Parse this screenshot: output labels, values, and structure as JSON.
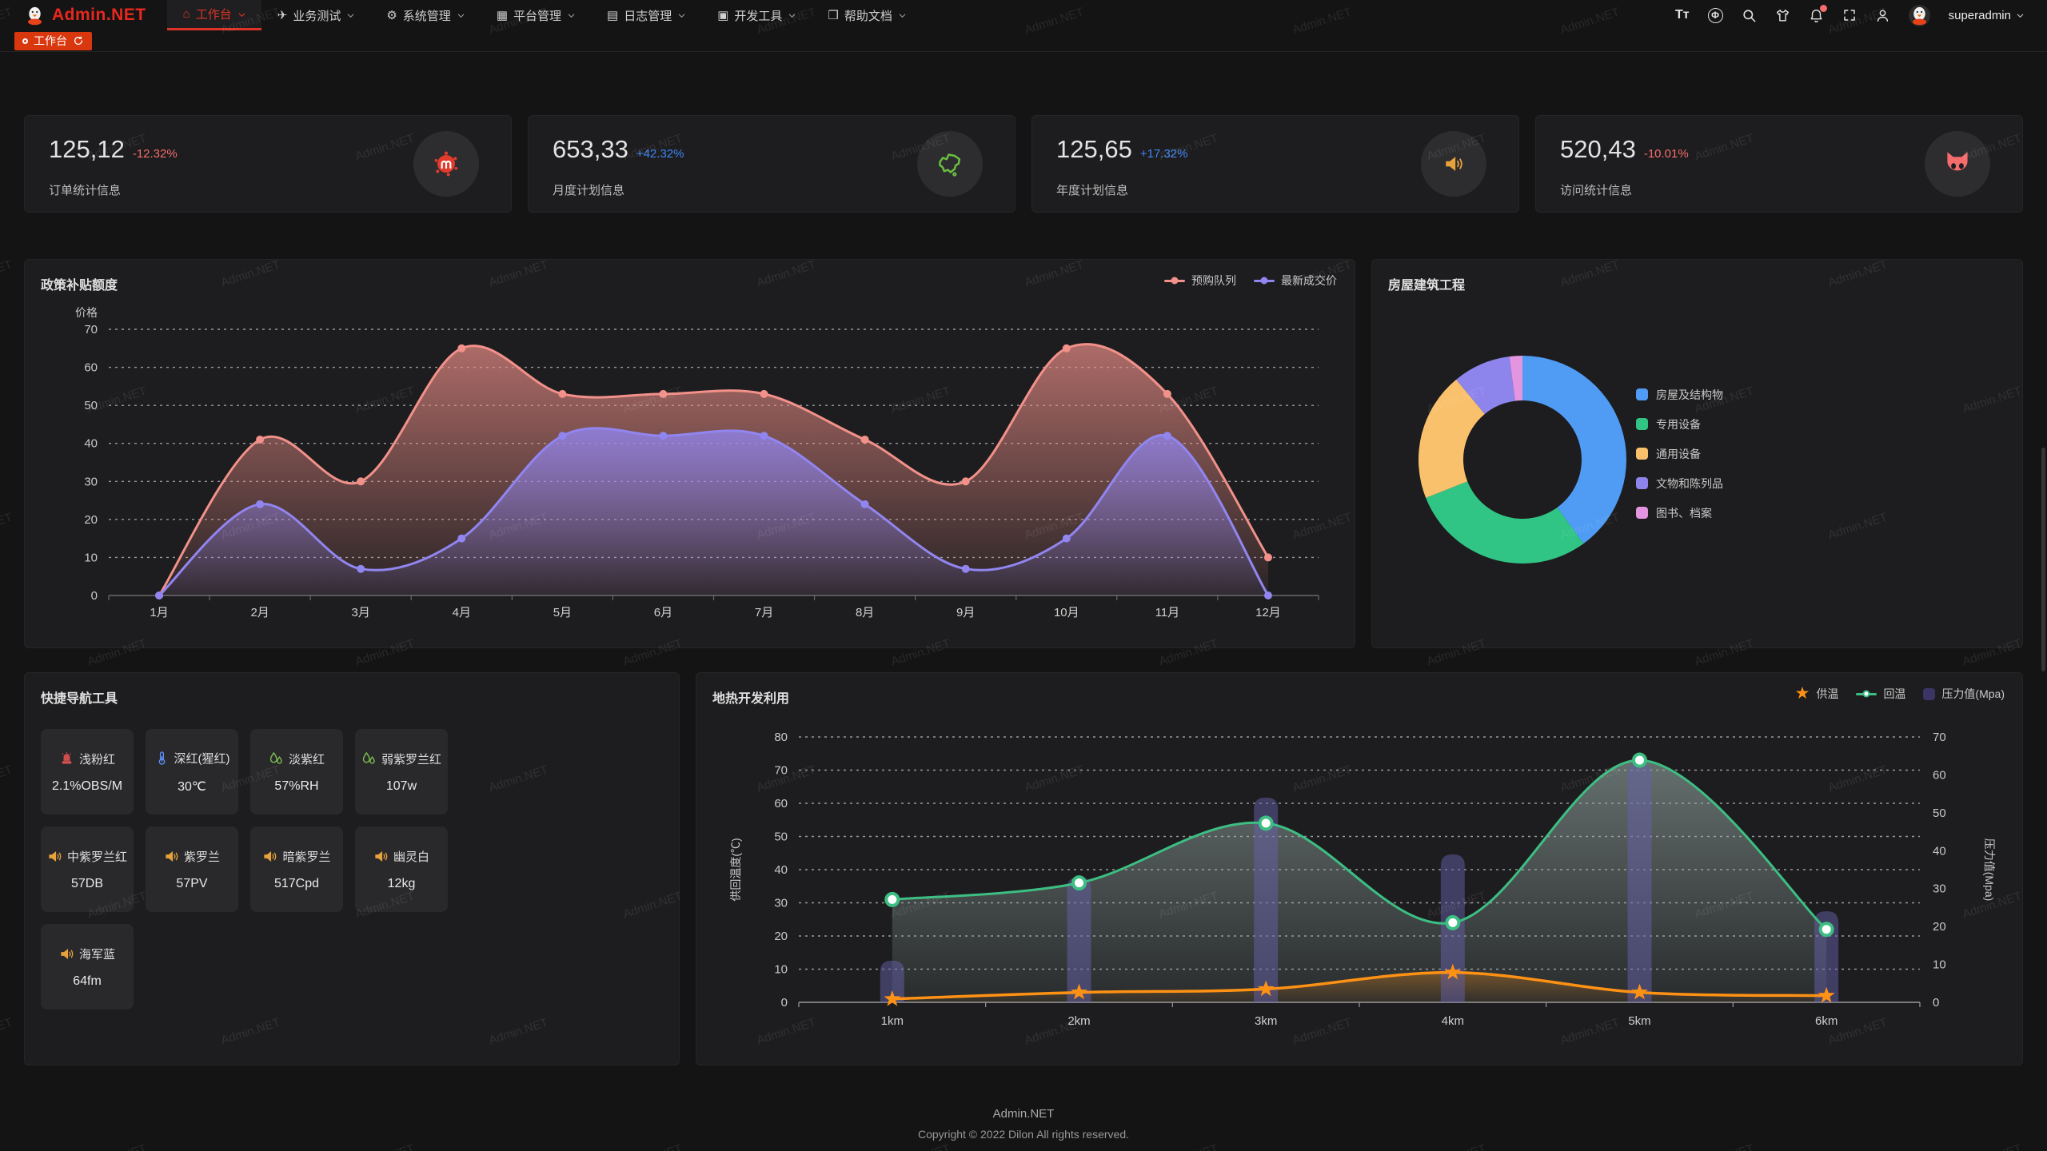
{
  "header": {
    "logo_text": "Admin.NET",
    "username": "superadmin",
    "menu": [
      {
        "key": "workbench",
        "label": "工作台",
        "icon": "home-icon",
        "active": true
      },
      {
        "key": "business",
        "label": "业务测试",
        "icon": "send-icon",
        "active": false
      },
      {
        "key": "system",
        "label": "系统管理",
        "icon": "gear-icon",
        "active": false
      },
      {
        "key": "platform",
        "label": "平台管理",
        "icon": "grid-icon",
        "active": false
      },
      {
        "key": "logs",
        "label": "日志管理",
        "icon": "log-icon",
        "active": false
      },
      {
        "key": "devtools",
        "label": "开发工具",
        "icon": "cpu-icon",
        "active": false
      },
      {
        "key": "docs",
        "label": "帮助文档",
        "icon": "book-icon",
        "active": false
      }
    ],
    "tools": [
      {
        "name": "font-size-icon",
        "glyph": "Tт"
      },
      {
        "name": "language-icon",
        "glyph": "Φ"
      },
      {
        "name": "search-icon"
      },
      {
        "name": "theme-icon"
      },
      {
        "name": "notification-icon",
        "badge": true
      },
      {
        "name": "fullscreen-icon"
      },
      {
        "name": "profile-icon"
      }
    ]
  },
  "tabbar": {
    "active_tab": "工作台"
  },
  "stats": [
    {
      "key": "orders",
      "value": "125,12",
      "delta": "-12.32%",
      "trend": "down",
      "label": "订单统计信息",
      "icon": "seal-icon",
      "icon_color": "#e23b2e"
    },
    {
      "key": "monthly-plan",
      "value": "653,33",
      "delta": "+42.32%",
      "trend": "up",
      "label": "月度计划信息",
      "icon": "china-map-icon",
      "icon_color": "#6abf40"
    },
    {
      "key": "yearly-plan",
      "value": "125,65",
      "delta": "+17.32%",
      "trend": "up",
      "label": "年度计划信息",
      "icon": "speaker-icon",
      "icon_color": "#e6a23c"
    },
    {
      "key": "visits",
      "value": "520,43",
      "delta": "-10.01%",
      "trend": "down",
      "label": "访问统计信息",
      "icon": "cat-icon",
      "icon_color": "#f56c6c"
    }
  ],
  "colors": {
    "delta_up": "#4086f4",
    "delta_down": "#f56c6c",
    "accent_red": "#df3425"
  },
  "chart_data": [
    {
      "id": "subsidy",
      "type": "area",
      "title": "政策补贴额度",
      "ylabel": "价格",
      "ylim": [
        0,
        70
      ],
      "grid": "dashed",
      "legend_position": "top-right",
      "categories": [
        "1月",
        "2月",
        "3月",
        "4月",
        "5月",
        "6月",
        "7月",
        "8月",
        "9月",
        "10月",
        "11月",
        "12月"
      ],
      "series": [
        {
          "name": "预购队列",
          "color": "#f2918a",
          "values": [
            0,
            41,
            30,
            65,
            53,
            53,
            53,
            41,
            30,
            65,
            53,
            10
          ]
        },
        {
          "name": "最新成交价",
          "color": "#9185f0",
          "values": [
            0,
            24,
            7,
            15,
            42,
            42,
            42,
            24,
            7,
            15,
            42,
            0
          ]
        }
      ]
    },
    {
      "id": "building",
      "type": "pie",
      "title": "房屋建筑工程",
      "legend_position": "right",
      "labels": [
        "房屋及结构物",
        "专用设备",
        "通用设备",
        "文物和陈列品",
        "图书、档案"
      ],
      "values": [
        40,
        29,
        20,
        9,
        2
      ],
      "colors": [
        "#509cf5",
        "#30c585",
        "#fac16d",
        "#8d85ec",
        "#e495e0"
      ]
    },
    {
      "id": "geothermal",
      "type": "line+bar",
      "title": "地热开发利用",
      "legend_position": "top-right",
      "categories": [
        "1km",
        "2km",
        "3km",
        "4km",
        "5km",
        "6km"
      ],
      "ylabel_left": "供回温度(℃)",
      "ylim_left": [
        0,
        80
      ],
      "ylabel_right": "压力值(Mpa)",
      "ylim_right": [
        0,
        70
      ],
      "series": [
        {
          "name": "供温",
          "type": "line",
          "axis": "left",
          "marker": "star",
          "color": "#ff9214",
          "values": [
            1,
            3,
            4,
            9,
            3,
            2
          ]
        },
        {
          "name": "回温",
          "type": "line",
          "axis": "left",
          "marker": "circle",
          "color": "#3dbe83",
          "values": [
            31,
            36,
            54,
            24,
            73,
            22
          ]
        },
        {
          "name": "压力值(Mpa)",
          "type": "bar",
          "axis": "right",
          "marker": "rect",
          "color": "rgba(102,95,170,0.5)",
          "chip_color": "#3b3566",
          "values": [
            11,
            33,
            54,
            39,
            63,
            24
          ]
        }
      ]
    }
  ],
  "quick_nav": {
    "title": "快捷导航工具",
    "items": [
      {
        "key": "light-pink",
        "name": "浅粉红",
        "value": "2.1%OBS/M",
        "icon": "siren-icon",
        "icon_color": "#de5050"
      },
      {
        "key": "crimson",
        "name": "深红(猩红)",
        "value": "30℃",
        "icon": "thermometer-icon",
        "icon_color": "#5b8ff9"
      },
      {
        "key": "pale-violet",
        "name": "淡紫红",
        "value": "57%RH",
        "icon": "humidity-icon",
        "icon_color": "#7cbe4f"
      },
      {
        "key": "weak-violet-red",
        "name": "弱紫罗兰红",
        "value": "107w",
        "icon": "humidity-icon",
        "icon_color": "#7cbe4f"
      },
      {
        "key": "medium-violet-red",
        "name": "中紫罗兰红",
        "value": "57DB",
        "icon": "speaker-icon",
        "icon_color": "#e8a23c"
      },
      {
        "key": "violet",
        "name": "紫罗兰",
        "value": "57PV",
        "icon": "speaker-icon",
        "icon_color": "#e8a23c"
      },
      {
        "key": "dark-violet",
        "name": "暗紫罗兰",
        "value": "517Cpd",
        "icon": "speaker-icon",
        "icon_color": "#e8a23c"
      },
      {
        "key": "ghost-white",
        "name": "幽灵白",
        "value": "12kg",
        "icon": "speaker-icon",
        "icon_color": "#e8a23c"
      },
      {
        "key": "navy-blue",
        "name": "海军蓝",
        "value": "64fm",
        "icon": "speaker-icon",
        "icon_color": "#e8a23c"
      }
    ]
  },
  "footer": {
    "app": "Admin.NET",
    "copyright": "Copyright © 2022 Dilon All rights reserved."
  },
  "watermark": {
    "text": "Admin.NET"
  }
}
